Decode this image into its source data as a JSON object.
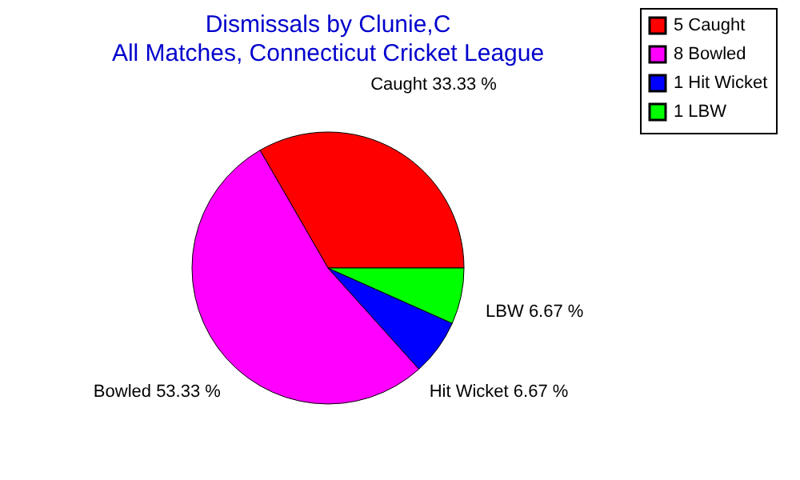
{
  "chart_data": {
    "type": "pie",
    "title": "Dismissals by Clunie,C",
    "subtitle": "All Matches, Connecticut Cricket League",
    "categories": [
      "5 Caught",
      "8 Bowled",
      "1 Hit Wicket",
      "1 LBW"
    ],
    "values": [
      33.33,
      53.33,
      6.67,
      6.67
    ],
    "colors": [
      "#ff0000",
      "#ff00ff",
      "#0000ff",
      "#00ff00"
    ],
    "value_labels": [
      "Caught 33.33 %",
      "Bowled 53.33 %",
      "Hit Wicket 6.67 %",
      "LBW 6.67 %"
    ],
    "legend": "top right"
  }
}
